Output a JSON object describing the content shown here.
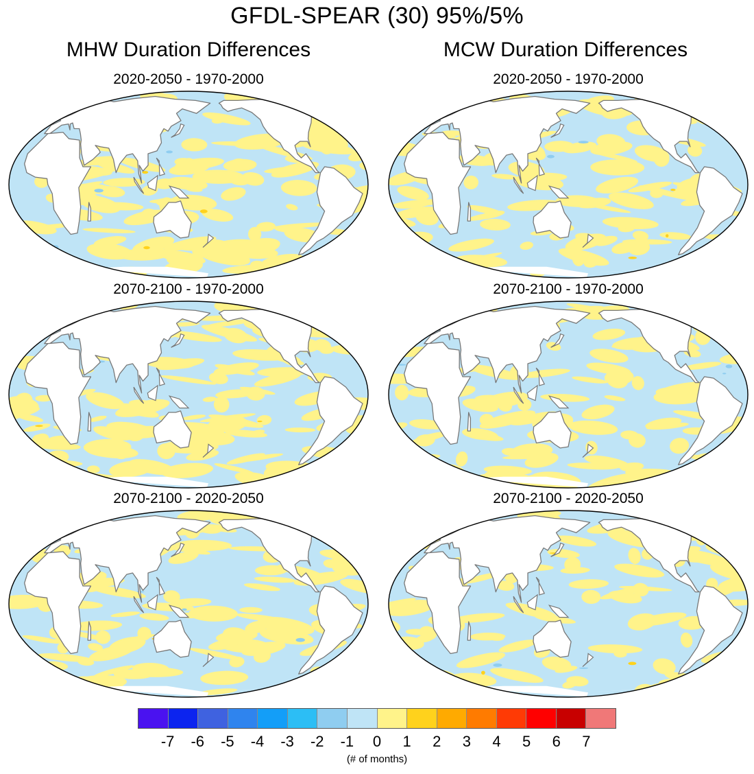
{
  "title": "GFDL-SPEAR (30) 95%/5%",
  "columns": [
    {
      "title": "MHW Duration Differences"
    },
    {
      "title": "MCW Duration Differences"
    }
  ],
  "panels": [
    {
      "title": "2020-2050 - 1970-2000",
      "column": 0,
      "row": 0,
      "seed": 11,
      "positive_fraction": 0.55
    },
    {
      "title": "2020-2050 - 1970-2000",
      "column": 1,
      "row": 0,
      "seed": 23,
      "positive_fraction": 0.45
    },
    {
      "title": "2070-2100 - 1970-2000",
      "column": 0,
      "row": 1,
      "seed": 37,
      "positive_fraction": 0.5
    },
    {
      "title": "2070-2100 - 1970-2000",
      "column": 1,
      "row": 1,
      "seed": 41,
      "positive_fraction": 0.48
    },
    {
      "title": "2070-2100 - 2020-2050",
      "column": 0,
      "row": 2,
      "seed": 53,
      "positive_fraction": 0.42
    },
    {
      "title": "2070-2100 - 2020-2050",
      "column": 1,
      "row": 2,
      "seed": 67,
      "positive_fraction": 0.4
    }
  ],
  "colorbar": {
    "labels": [
      "-7",
      "-6",
      "-5",
      "-4",
      "-3",
      "-2",
      "-1",
      "0",
      "1",
      "2",
      "3",
      "4",
      "5",
      "6",
      "7"
    ],
    "colors": [
      "#4a12f0",
      "#0c24ef",
      "#3f62e0",
      "#2f84ee",
      "#139ef8",
      "#2cbef5",
      "#8fcdf0",
      "#bfe4f6",
      "#fff38a",
      "#ffd21c",
      "#ffaa00",
      "#ff7b00",
      "#ff3a05",
      "#ff0000",
      "#c80000",
      "#f07878"
    ],
    "units": "(# of months)"
  },
  "map_colors": {
    "negative": "#bfe4f6",
    "positive": "#fff38a",
    "land": "#ffffff",
    "coast": "#777777",
    "border": "#000000"
  }
}
